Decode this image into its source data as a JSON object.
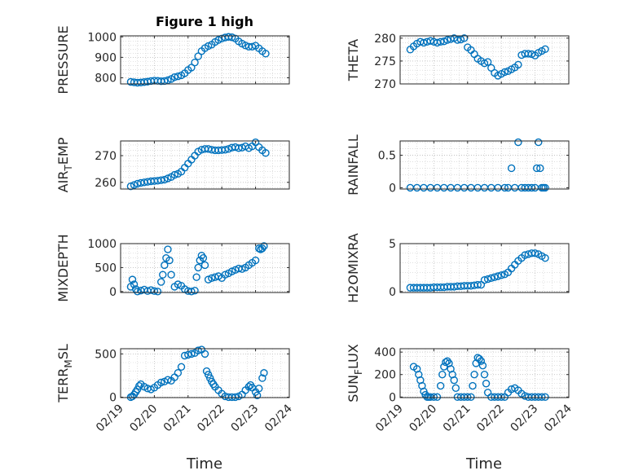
{
  "figure": {
    "title": "Figure 1 high",
    "x_label": "Time",
    "x_ticks": [
      "02/19",
      "02/20",
      "02/21",
      "02/22",
      "02/23",
      "02/24"
    ],
    "marker_color": "#0072bd",
    "grid_color": "#cccccc"
  },
  "chart_data": [
    {
      "type": "scatter",
      "ylabel": "PRESSURE",
      "xlim": [
        "02/19",
        "02/24"
      ],
      "ylim": [
        770,
        1005
      ],
      "yticks": [
        800,
        900,
        1000
      ],
      "grid": true,
      "x_days": [
        0.3,
        0.4,
        0.5,
        0.6,
        0.7,
        0.8,
        0.9,
        1.0,
        1.1,
        1.2,
        1.3,
        1.4,
        1.5,
        1.6,
        1.7,
        1.8,
        1.9,
        2.0,
        2.1,
        2.2,
        2.3,
        2.4,
        2.5,
        2.6,
        2.7,
        2.8,
        2.9,
        3.0,
        3.1,
        3.2,
        3.3,
        3.4,
        3.5,
        3.6,
        3.7,
        3.8,
        3.9,
        4.0,
        4.1,
        4.2,
        4.3
      ],
      "y": [
        780,
        778,
        776,
        777,
        779,
        781,
        784,
        786,
        785,
        783,
        784,
        788,
        794,
        803,
        807,
        812,
        822,
        838,
        850,
        875,
        905,
        930,
        945,
        955,
        962,
        975,
        985,
        992,
        997,
        1000,
        998,
        992,
        978,
        967,
        958,
        952,
        952,
        957,
        944,
        930,
        918
      ]
    },
    {
      "type": "scatter",
      "ylabel": "THETA",
      "xlim": [
        "02/19",
        "02/24"
      ],
      "ylim": [
        270,
        280.5
      ],
      "yticks": [
        270,
        275,
        280
      ],
      "grid": true,
      "x_days": [
        0.3,
        0.4,
        0.5,
        0.6,
        0.7,
        0.8,
        0.9,
        1.0,
        1.1,
        1.2,
        1.3,
        1.4,
        1.5,
        1.6,
        1.7,
        1.8,
        1.9,
        2.0,
        2.1,
        2.2,
        2.3,
        2.4,
        2.5,
        2.6,
        2.7,
        2.8,
        2.9,
        3.0,
        3.1,
        3.2,
        3.3,
        3.4,
        3.5,
        3.6,
        3.7,
        3.8,
        3.9,
        4.0,
        4.1,
        4.2,
        4.3
      ],
      "y": [
        277.5,
        278.2,
        278.8,
        279.2,
        279.0,
        279.2,
        279.4,
        279.2,
        279.0,
        279.2,
        279.3,
        279.6,
        279.8,
        280.0,
        279.6,
        279.7,
        280.0,
        278.0,
        277.4,
        276.5,
        275.5,
        275.0,
        274.5,
        274.8,
        273.5,
        272.4,
        271.8,
        272.2,
        272.6,
        272.8,
        273.2,
        273.6,
        274.2,
        276.3,
        276.6,
        276.6,
        276.5,
        276.2,
        276.8,
        277.2,
        277.6
      ]
    },
    {
      "type": "scatter",
      "ylabel": "AIR_TEMP",
      "xlim": [
        "02/19",
        "02/24"
      ],
      "ylim": [
        257.5,
        275.5
      ],
      "yticks": [
        260,
        270
      ],
      "grid": true,
      "x_days": [
        0.3,
        0.4,
        0.5,
        0.6,
        0.7,
        0.8,
        0.9,
        1.0,
        1.1,
        1.2,
        1.3,
        1.4,
        1.5,
        1.6,
        1.7,
        1.8,
        1.9,
        2.0,
        2.1,
        2.2,
        2.3,
        2.4,
        2.5,
        2.6,
        2.7,
        2.8,
        2.9,
        3.0,
        3.1,
        3.2,
        3.3,
        3.4,
        3.5,
        3.6,
        3.7,
        3.8,
        3.9,
        4.0,
        4.1,
        4.2,
        4.3
      ],
      "y": [
        258.5,
        259.0,
        259.5,
        259.8,
        260.0,
        260.2,
        260.4,
        260.5,
        260.6,
        260.8,
        261.0,
        261.5,
        262.0,
        262.8,
        263.2,
        264.0,
        265.5,
        267.0,
        268.5,
        270.0,
        271.5,
        272.2,
        272.5,
        272.5,
        272.2,
        272.0,
        272.0,
        272.1,
        272.2,
        272.5,
        273.0,
        273.2,
        272.8,
        273.0,
        273.5,
        272.8,
        273.5,
        275.0,
        273.2,
        272.0,
        271.0
      ]
    },
    {
      "type": "scatter",
      "ylabel": "RAINFALL",
      "xlim": [
        "02/19",
        "02/24"
      ],
      "ylim": [
        -0.02,
        0.72
      ],
      "yticks": [
        0,
        0.5
      ],
      "grid": true,
      "x_days": [
        0.3,
        0.5,
        0.7,
        0.9,
        1.1,
        1.3,
        1.5,
        1.7,
        1.9,
        2.1,
        2.3,
        2.5,
        2.7,
        2.9,
        3.1,
        3.2,
        3.3,
        3.4,
        3.5,
        3.6,
        3.7,
        3.8,
        3.9,
        4.0,
        4.05,
        4.1,
        4.15,
        4.2,
        4.25,
        4.3
      ],
      "y": [
        0,
        0,
        0,
        0,
        0,
        0,
        0,
        0,
        0,
        0,
        0,
        0,
        0,
        0,
        0,
        0,
        0.3,
        0,
        0.7,
        0,
        0,
        0,
        0,
        0,
        0.3,
        0.7,
        0.3,
        0,
        0,
        0
      ]
    },
    {
      "type": "scatter",
      "ylabel": "MIXDEPTH",
      "xlim": [
        "02/19",
        "02/24"
      ],
      "ylim": [
        -20,
        1000
      ],
      "yticks": [
        0,
        500,
        1000
      ],
      "grid": true,
      "x_days": [
        0.3,
        0.35,
        0.4,
        0.45,
        0.5,
        0.6,
        0.7,
        0.8,
        0.9,
        1.0,
        1.1,
        1.2,
        1.25,
        1.3,
        1.35,
        1.4,
        1.45,
        1.5,
        1.6,
        1.7,
        1.8,
        1.9,
        2.0,
        2.1,
        2.2,
        2.25,
        2.3,
        2.35,
        2.4,
        2.45,
        2.5,
        2.6,
        2.7,
        2.8,
        2.9,
        3.0,
        3.1,
        3.2,
        3.3,
        3.4,
        3.5,
        3.6,
        3.7,
        3.8,
        3.9,
        4.0,
        4.1,
        4.15,
        4.2,
        4.25
      ],
      "y": [
        100,
        250,
        150,
        50,
        0,
        20,
        40,
        10,
        30,
        10,
        0,
        200,
        350,
        550,
        700,
        880,
        650,
        350,
        100,
        150,
        120,
        50,
        10,
        0,
        20,
        300,
        500,
        650,
        750,
        700,
        550,
        250,
        280,
        300,
        320,
        280,
        350,
        380,
        420,
        450,
        480,
        470,
        500,
        550,
        600,
        650,
        900,
        880,
        900,
        950
      ]
    },
    {
      "type": "scatter",
      "ylabel": "H2OMIXRA",
      "xlim": [
        "02/19",
        "02/24"
      ],
      "ylim": [
        -0.1,
        5
      ],
      "yticks": [
        0,
        5
      ],
      "grid": true,
      "x_days": [
        0.3,
        0.4,
        0.5,
        0.6,
        0.7,
        0.8,
        0.9,
        1.0,
        1.1,
        1.2,
        1.3,
        1.4,
        1.5,
        1.6,
        1.7,
        1.8,
        1.9,
        2.0,
        2.1,
        2.2,
        2.3,
        2.4,
        2.5,
        2.6,
        2.7,
        2.8,
        2.9,
        3.0,
        3.1,
        3.2,
        3.3,
        3.4,
        3.5,
        3.6,
        3.7,
        3.8,
        3.9,
        4.0,
        4.1,
        4.2,
        4.3
      ],
      "y": [
        0.4,
        0.4,
        0.4,
        0.4,
        0.4,
        0.4,
        0.4,
        0.45,
        0.45,
        0.45,
        0.45,
        0.5,
        0.5,
        0.5,
        0.55,
        0.55,
        0.6,
        0.6,
        0.6,
        0.65,
        0.7,
        0.7,
        1.2,
        1.3,
        1.4,
        1.5,
        1.6,
        1.7,
        1.8,
        2.0,
        2.4,
        2.8,
        3.2,
        3.5,
        3.8,
        3.9,
        4.0,
        4.0,
        3.9,
        3.7,
        3.5
      ]
    },
    {
      "type": "scatter",
      "ylabel": "TERR_MSL",
      "xlim": [
        "02/19",
        "02/24"
      ],
      "ylim": [
        -5,
        560
      ],
      "yticks": [
        0,
        500
      ],
      "grid": true,
      "x_days": [
        0.3,
        0.35,
        0.4,
        0.45,
        0.5,
        0.55,
        0.6,
        0.7,
        0.8,
        0.9,
        1.0,
        1.1,
        1.2,
        1.3,
        1.4,
        1.5,
        1.6,
        1.7,
        1.8,
        1.9,
        2.0,
        2.1,
        2.2,
        2.3,
        2.4,
        2.5,
        2.55,
        2.6,
        2.65,
        2.7,
        2.75,
        2.8,
        2.9,
        3.0,
        3.1,
        3.2,
        3.3,
        3.4,
        3.5,
        3.6,
        3.7,
        3.8,
        3.85,
        3.9,
        4.0,
        4.05,
        4.1,
        4.2,
        4.25
      ],
      "y": [
        0,
        10,
        30,
        60,
        90,
        130,
        150,
        120,
        100,
        90,
        110,
        140,
        170,
        180,
        200,
        190,
        230,
        280,
        350,
        480,
        490,
        500,
        510,
        540,
        550,
        500,
        300,
        260,
        220,
        180,
        150,
        120,
        80,
        40,
        10,
        0,
        0,
        0,
        10,
        30,
        80,
        120,
        140,
        110,
        60,
        20,
        100,
        220,
        280
      ]
    },
    {
      "type": "scatter",
      "ylabel": "SUN_FLUX",
      "xlim": [
        "02/19",
        "02/24"
      ],
      "ylim": [
        -5,
        430
      ],
      "yticks": [
        0,
        200,
        400
      ],
      "grid": true,
      "x_days": [
        0.4,
        0.5,
        0.55,
        0.6,
        0.65,
        0.7,
        0.75,
        0.8,
        0.85,
        0.9,
        1.0,
        1.1,
        1.2,
        1.25,
        1.3,
        1.35,
        1.4,
        1.45,
        1.5,
        1.55,
        1.6,
        1.65,
        1.7,
        1.8,
        1.9,
        2.0,
        2.1,
        2.15,
        2.2,
        2.25,
        2.3,
        2.35,
        2.4,
        2.45,
        2.5,
        2.55,
        2.6,
        2.7,
        2.8,
        2.9,
        3.0,
        3.1,
        3.2,
        3.3,
        3.4,
        3.5,
        3.6,
        3.7,
        3.8,
        3.9,
        4.0,
        4.1,
        4.2,
        4.3
      ],
      "y": [
        270,
        250,
        200,
        150,
        100,
        50,
        20,
        0,
        0,
        0,
        0,
        0,
        100,
        200,
        270,
        310,
        320,
        300,
        250,
        200,
        150,
        80,
        0,
        0,
        0,
        0,
        0,
        100,
        200,
        300,
        350,
        340,
        320,
        280,
        200,
        120,
        40,
        0,
        0,
        0,
        0,
        0,
        40,
        70,
        80,
        60,
        30,
        10,
        0,
        0,
        0,
        0,
        0,
        0
      ]
    }
  ]
}
